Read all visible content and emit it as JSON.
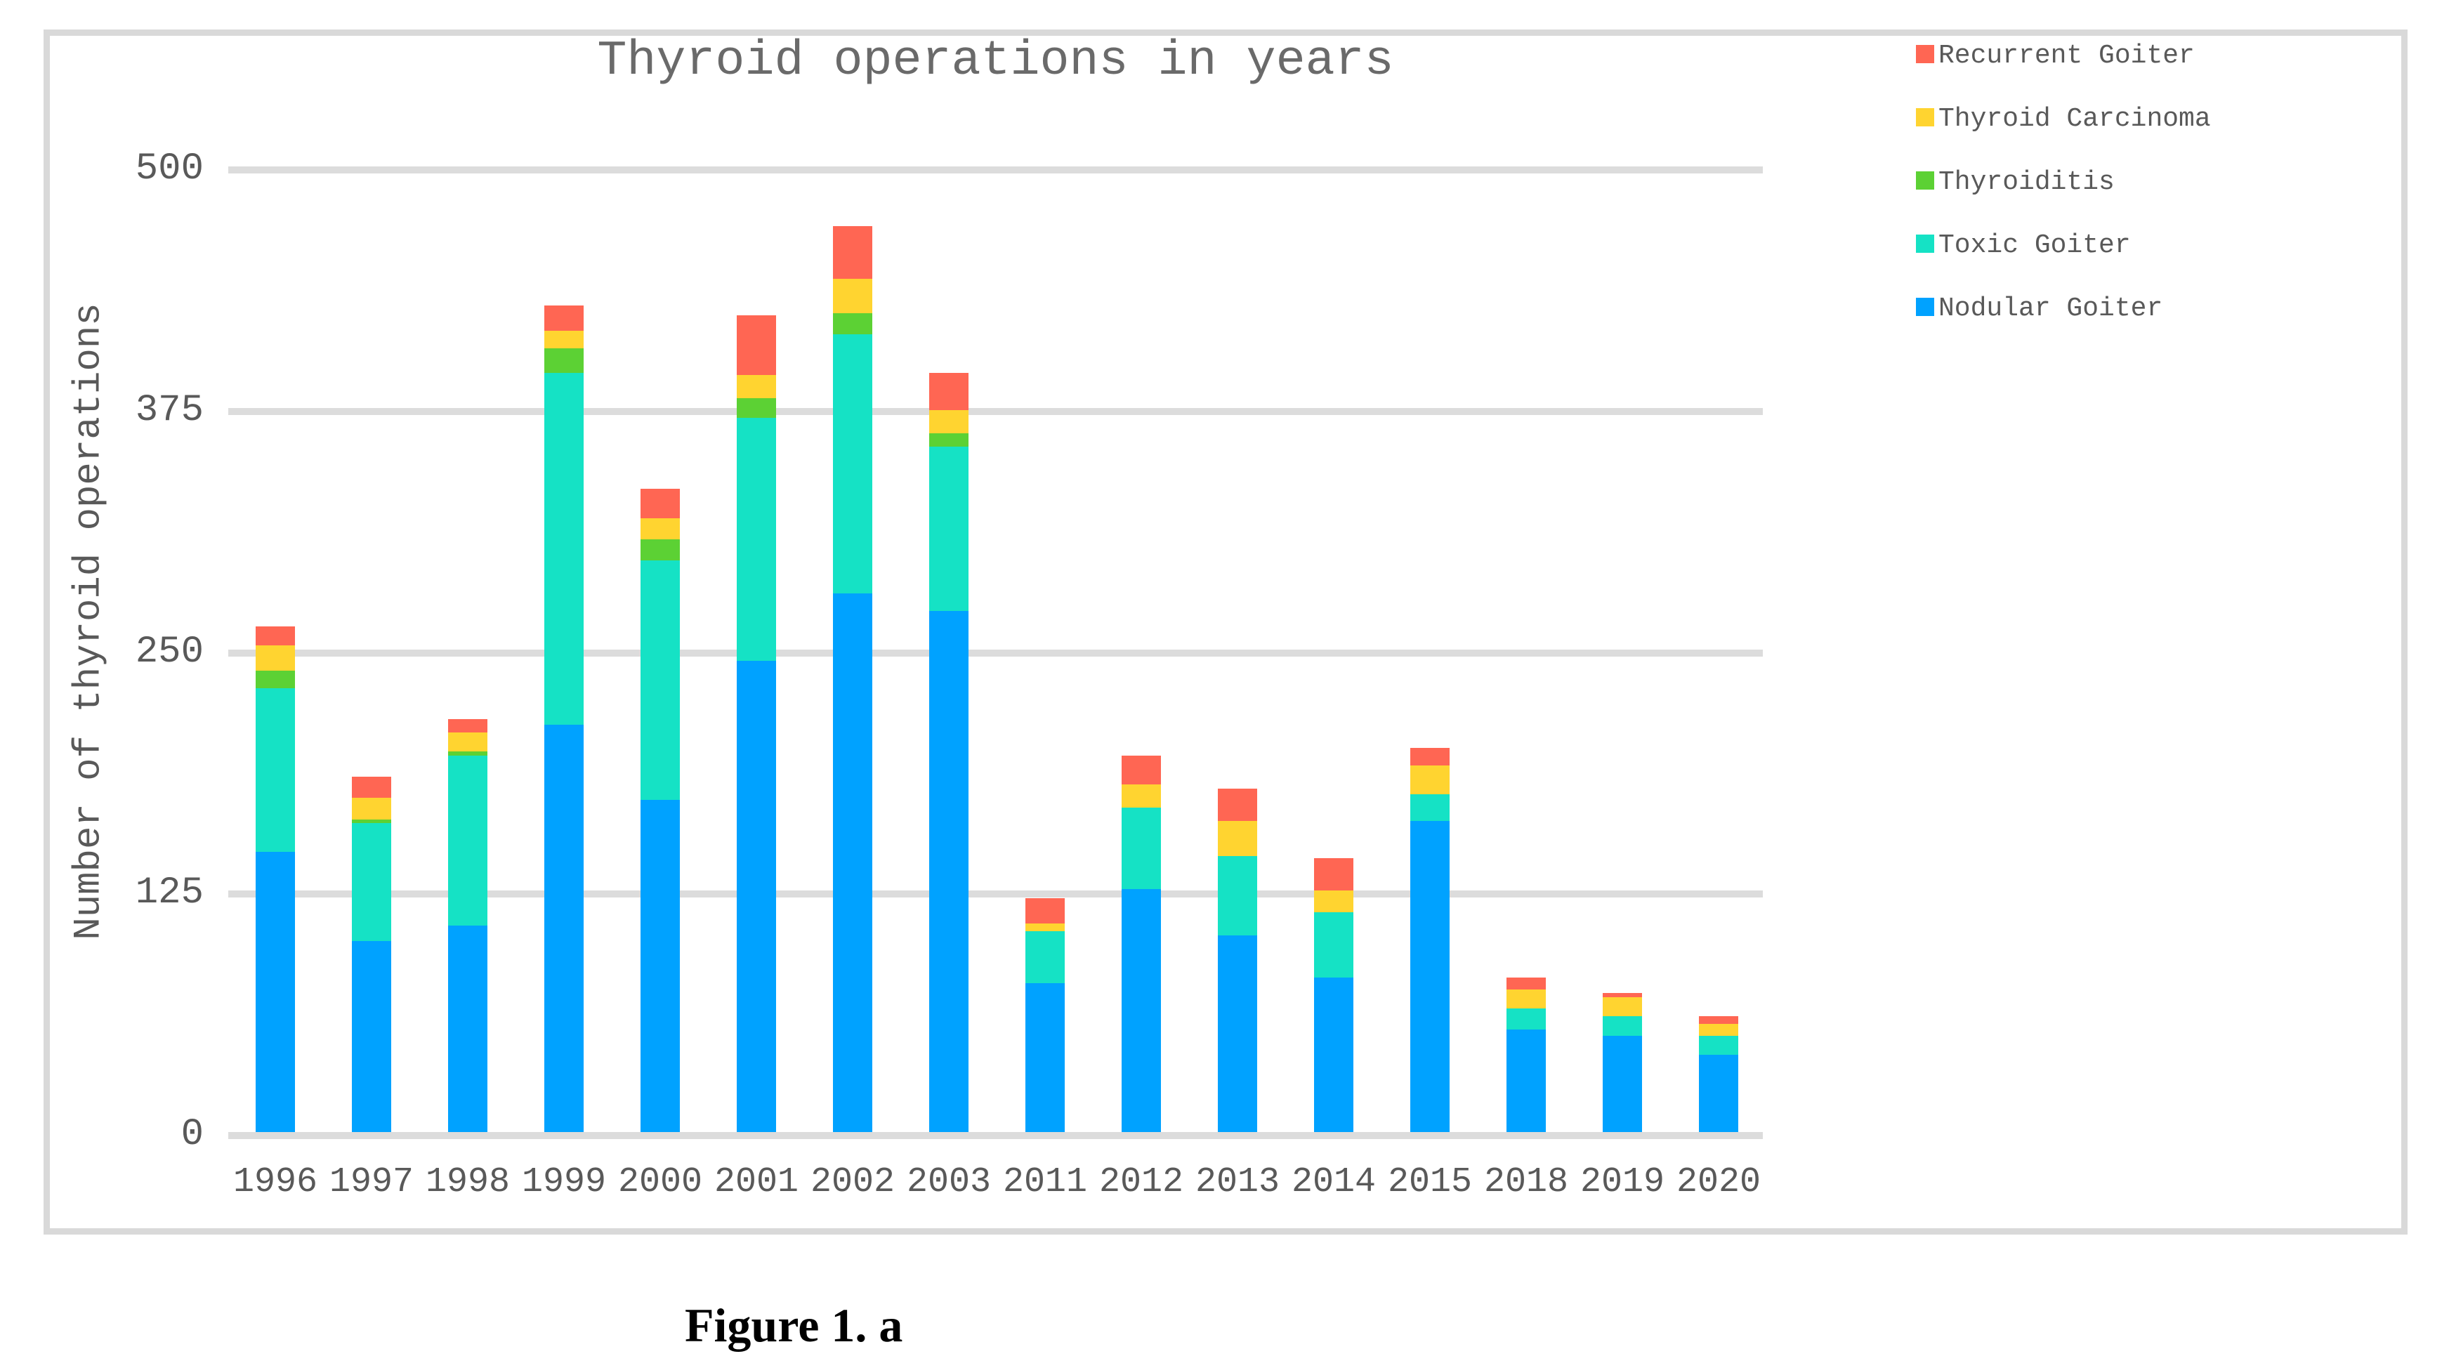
{
  "title": "Thyroid operations in years",
  "caption": "Figure 1. a",
  "y_axis_title": "Number of thyroid operations",
  "colors": {
    "recurrent_goiter": "#FF6653",
    "thyroid_carcinoma": "#FFD430",
    "thyroiditis": "#5CD134",
    "toxic_goiter": "#15E2C5",
    "nodular_goiter": "#00A2FF",
    "gridline": "#DCDCDC",
    "frame": "#D9D9D9",
    "axis_text": "#595959",
    "title_text": "#6A6A6A"
  },
  "legend": [
    {
      "label": "Recurrent Goiter",
      "color": "#FF6653"
    },
    {
      "label": "Thyroid Carcinoma",
      "color": "#FFD430"
    },
    {
      "label": "Thyroiditis",
      "color": "#5CD134"
    },
    {
      "label": "Toxic Goiter",
      "color": "#15E2C5"
    },
    {
      "label": "Nodular Goiter",
      "color": "#00A2FF"
    }
  ],
  "chart_data": {
    "type": "bar",
    "stacked": true,
    "title": "Thyroid operations in years",
    "xlabel": "",
    "ylabel": "Number of thyroid operations",
    "ylim": [
      0,
      500
    ],
    "yticks": [
      0,
      125,
      250,
      375,
      500
    ],
    "grid": true,
    "legend_position": "top-right",
    "categories": [
      "1996",
      "1997",
      "1998",
      "1999",
      "2000",
      "2001",
      "2002",
      "2003",
      "2011",
      "2012",
      "2013",
      "2014",
      "2015",
      "2018",
      "2019",
      "2020"
    ],
    "series": [
      {
        "name": "Nodular Goiter",
        "color": "#00A2FF",
        "values": [
          145,
          99,
          107,
          211,
          172,
          244,
          279,
          270,
          77,
          126,
          102,
          80,
          161,
          53,
          50,
          40
        ]
      },
      {
        "name": "Toxic Goiter",
        "color": "#15E2C5",
        "values": [
          85,
          61,
          88,
          182,
          124,
          126,
          134,
          85,
          27,
          42,
          41,
          34,
          14,
          11,
          10,
          10
        ]
      },
      {
        "name": "Thyroiditis",
        "color": "#5CD134",
        "values": [
          9,
          2,
          2,
          13,
          11,
          10,
          11,
          7,
          0,
          0,
          0,
          0,
          0,
          0,
          0,
          0
        ]
      },
      {
        "name": "Thyroid Carcinoma",
        "color": "#FFD430",
        "values": [
          13,
          11,
          10,
          9,
          11,
          12,
          18,
          12,
          4,
          12,
          18,
          11,
          15,
          10,
          10,
          6
        ]
      },
      {
        "name": "Recurrent Goiter",
        "color": "#FF6653",
        "values": [
          10,
          11,
          7,
          13,
          15,
          31,
          27,
          19,
          13,
          15,
          17,
          17,
          9,
          6,
          2,
          4
        ]
      }
    ],
    "totals": [
      262,
      184,
      214,
      428,
      333,
      423,
      469,
      393,
      121,
      195,
      178,
      142,
      199,
      80,
      72,
      60
    ]
  }
}
